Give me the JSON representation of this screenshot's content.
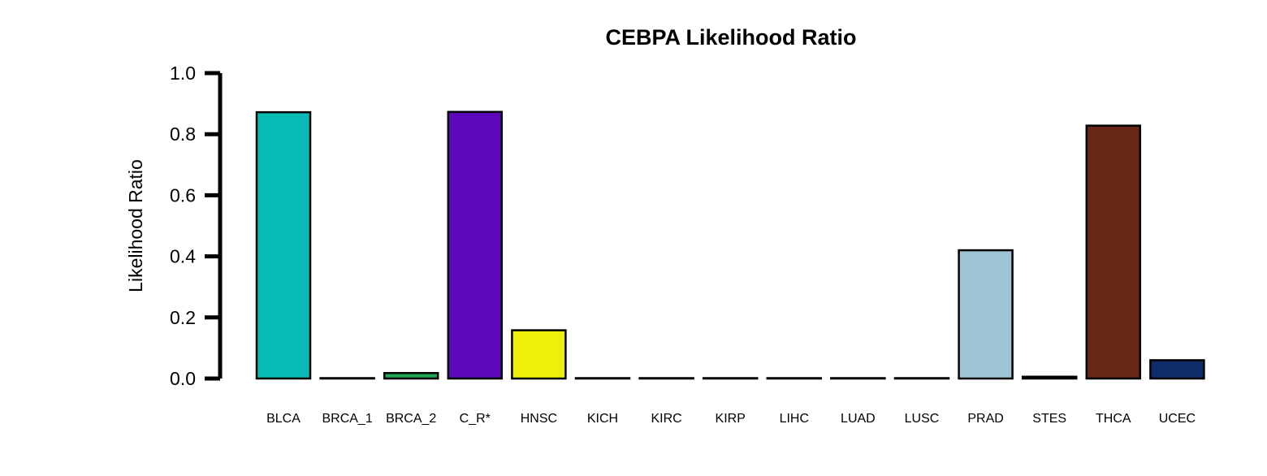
{
  "chart_data": {
    "type": "bar",
    "title": "CEBPA Likelihood Ratio",
    "xlabel": "",
    "ylabel": "Likelihood Ratio",
    "ylim": [
      0,
      1
    ],
    "yticks": [
      "0.0",
      "0.2",
      "0.4",
      "0.6",
      "0.8",
      "1.0"
    ],
    "grid": false,
    "legend": "none",
    "categories": [
      "BLCA",
      "BRCA_1",
      "BRCA_2",
      "C_R*",
      "HNSC",
      "KICH",
      "KIRC",
      "KIRP",
      "LIHC",
      "LUAD",
      "LUSC",
      "PRAD",
      "STES",
      "THCA",
      "UCEC"
    ],
    "values": [
      0.872,
      0.0,
      0.018,
      0.873,
      0.158,
      0.0,
      0.0,
      0.0,
      0.0,
      0.0,
      0.0,
      0.42,
      0.006,
      0.828,
      0.06
    ],
    "colors": [
      "#08BAB4",
      "#1A1A1A",
      "#1FA84F",
      "#5C0ABB",
      "#EEF00C",
      "#1A1A1A",
      "#1A1A1A",
      "#1A1A1A",
      "#1A1A1A",
      "#1A1A1A",
      "#1A1A1A",
      "#9FC4D4",
      "#1A1A1A",
      "#662714",
      "#0F2E69"
    ]
  }
}
